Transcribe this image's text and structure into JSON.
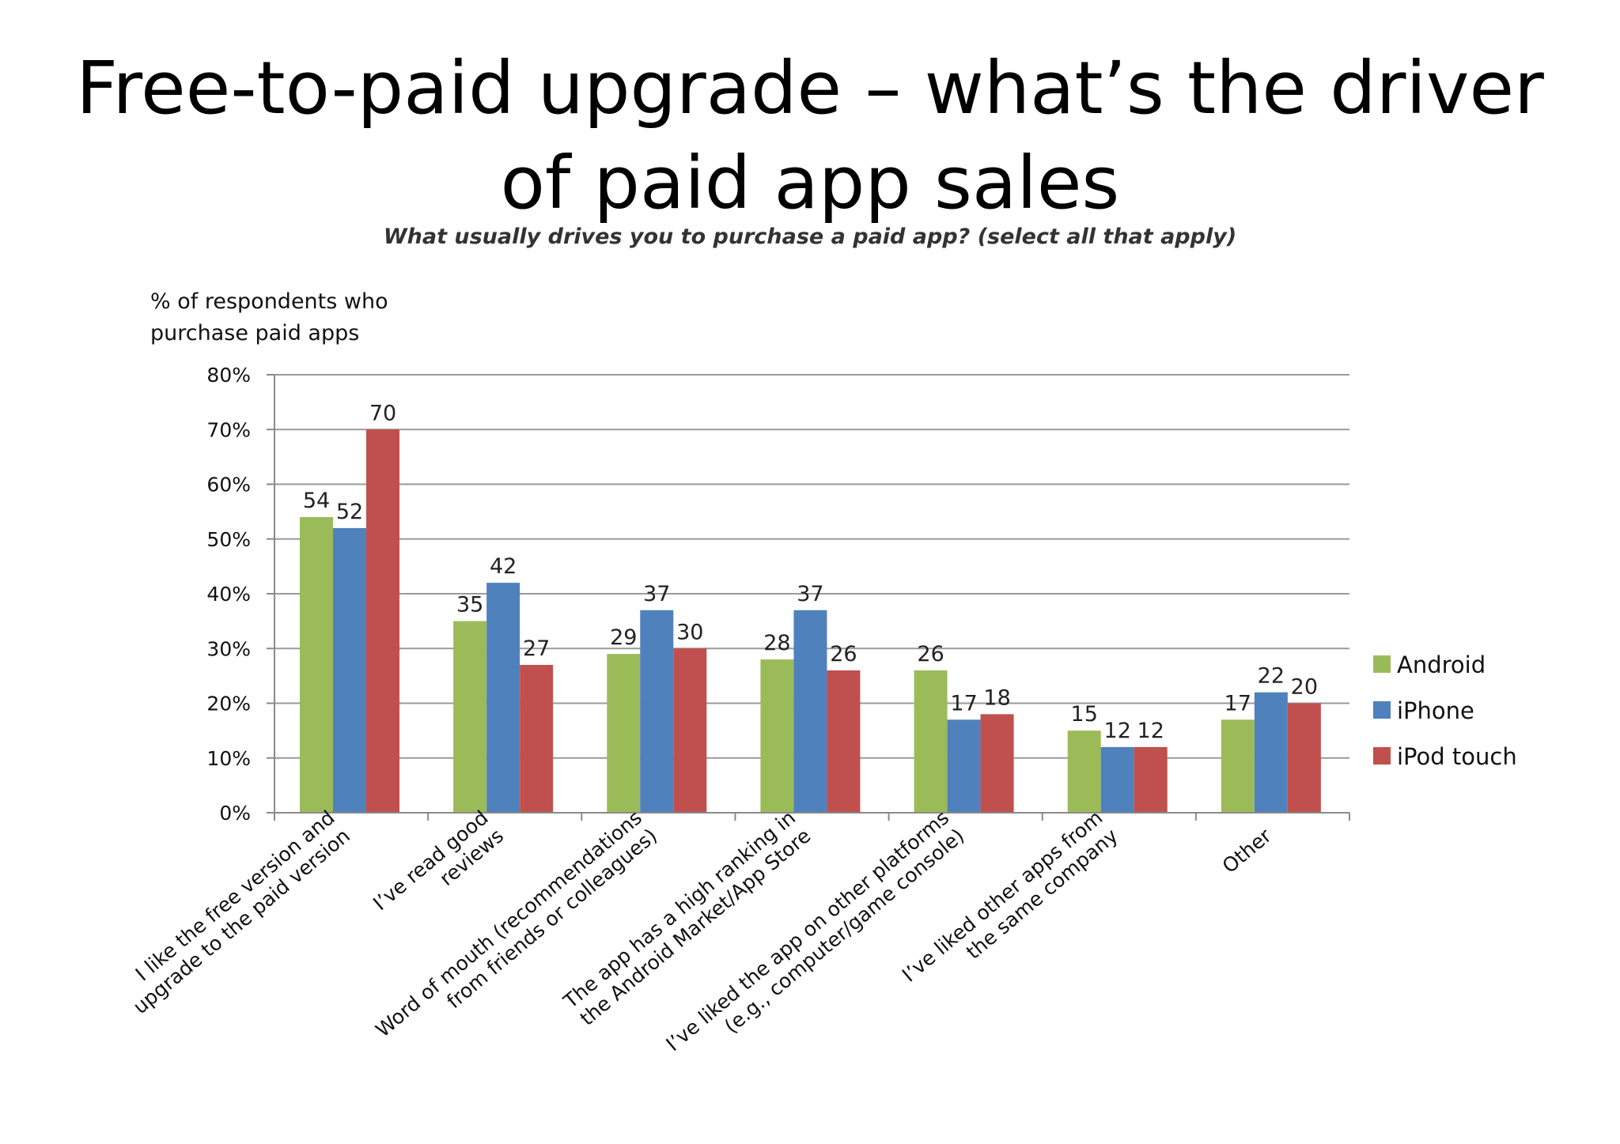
{
  "title_lines": [
    "Free-to-paid upgrade – what’s the driver",
    "of paid app sales"
  ],
  "chart_data": {
    "type": "bar",
    "subtitle": "What usually drives you to purchase a paid app? (select all that apply)",
    "ylabel_lines": [
      "% of respondents who",
      "purchase paid apps"
    ],
    "ylim": [
      0,
      80
    ],
    "yticks": [
      "0%",
      "10%",
      "20%",
      "30%",
      "40%",
      "50%",
      "60%",
      "70%",
      "80%"
    ],
    "grid": true,
    "legend_position": "right",
    "categories": [
      [
        "I like the free version and",
        "upgrade to the paid version"
      ],
      [
        "I’ve read good",
        "reviews"
      ],
      [
        "Word of mouth (recommendations",
        "from friends or colleagues)"
      ],
      [
        "The app has a high ranking in",
        "the Android Market/App Store"
      ],
      [
        "I’ve liked the app on other platforms",
        "(e.g., computer/game console)"
      ],
      [
        "I’ve liked other apps from",
        "the same company"
      ],
      [
        "Other"
      ]
    ],
    "series": [
      {
        "name": "Android",
        "color": "#9bbb59",
        "values": [
          54,
          35,
          29,
          28,
          26,
          15,
          17
        ]
      },
      {
        "name": "iPhone",
        "color": "#4f81bd",
        "values": [
          52,
          42,
          37,
          37,
          17,
          12,
          22
        ]
      },
      {
        "name": "iPod touch",
        "color": "#c0504d",
        "values": [
          70,
          27,
          30,
          26,
          18,
          12,
          20
        ]
      }
    ]
  }
}
